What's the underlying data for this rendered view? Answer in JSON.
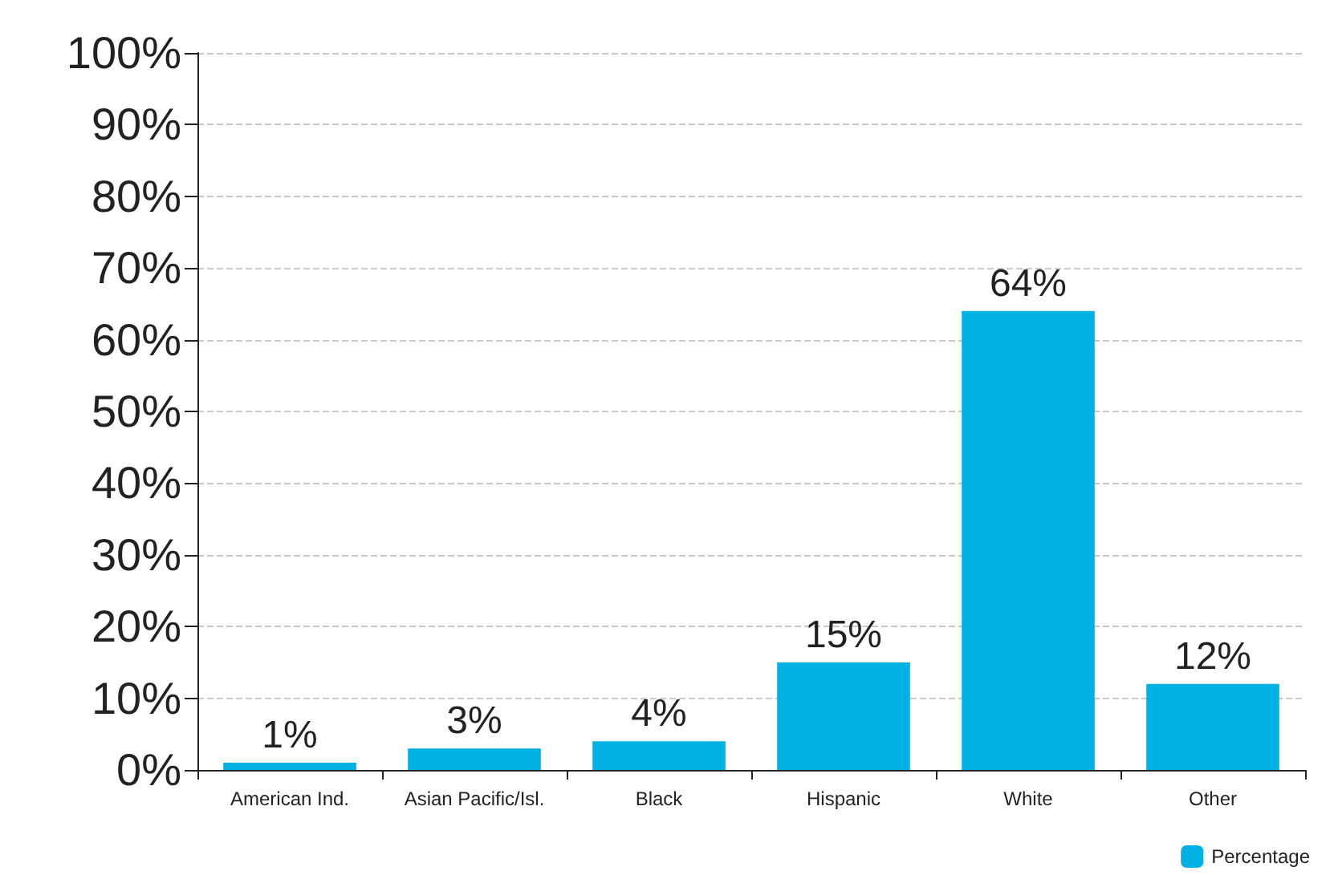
{
  "chart_data": {
    "type": "bar",
    "categories": [
      "American Ind.",
      "Asian Pacific/Isl.",
      "Black",
      "Hispanic",
      "White",
      "Other"
    ],
    "series": [
      {
        "name": "Percentage",
        "color": "#00b2e3",
        "values": [
          1,
          3,
          4,
          15,
          64,
          12
        ],
        "value_labels": [
          "1%",
          "3%",
          "4%",
          "15%",
          "64%",
          "12%"
        ]
      }
    ],
    "ylim": [
      0,
      100
    ],
    "yticks": [
      {
        "value": 0,
        "label": "0%"
      },
      {
        "value": 10,
        "label": "10%"
      },
      {
        "value": 20,
        "label": "20%"
      },
      {
        "value": 30,
        "label": "30%"
      },
      {
        "value": 40,
        "label": "40%"
      },
      {
        "value": 50,
        "label": "50%"
      },
      {
        "value": 60,
        "label": "60%"
      },
      {
        "value": 70,
        "label": "70%"
      },
      {
        "value": 80,
        "label": "80%"
      },
      {
        "value": 90,
        "label": "90%"
      },
      {
        "value": 100,
        "label": "100%"
      }
    ],
    "grid": "y",
    "legend": "bottom right"
  }
}
